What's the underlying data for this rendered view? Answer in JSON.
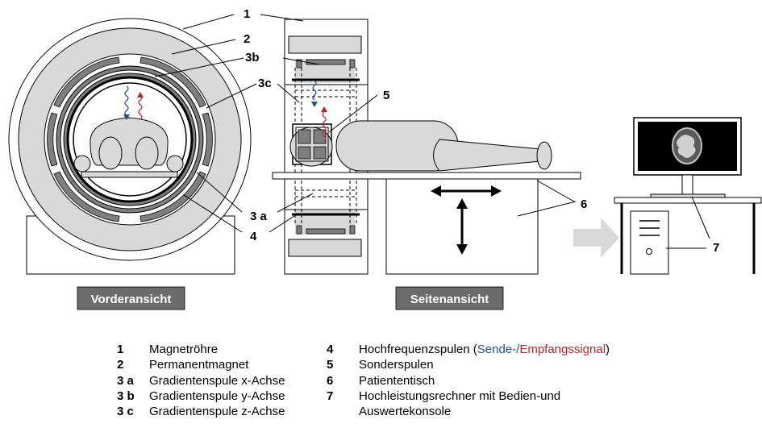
{
  "views": {
    "front": "Vorderansicht",
    "side": "Seitenansicht"
  },
  "callouts": [
    "1",
    "2",
    "3b",
    "3c",
    "5",
    "3 a",
    "4",
    "6",
    "7"
  ],
  "legend_left": [
    {
      "num": "1",
      "text": "Magnetröhre"
    },
    {
      "num": "2",
      "text": "Permanentmagnet"
    },
    {
      "num": "3 a",
      "text": "Gradientenspule x-Achse"
    },
    {
      "num": "3 b",
      "text": "Gradientenspule y-Achse"
    },
    {
      "num": "3 c",
      "text": "Gradientenspule z-Achse"
    }
  ],
  "legend_right": [
    {
      "num": "4",
      "text_a": "Hochfrequenzspulen (",
      "send": "Sende-",
      "slash": "/",
      "receive": "Empfangssignal",
      "close": ")"
    },
    {
      "num": "5",
      "text": "Sonderspulen"
    },
    {
      "num": "6",
      "text": "Patiententisch"
    },
    {
      "num": "7",
      "text": "Hochleistungsrechner mit Bedien-und"
    },
    {
      "num": "",
      "text": "Auswertekonsole"
    }
  ],
  "colors": {
    "send_signal": "#1f4e8c",
    "receive_signal": "#b02a2a",
    "label_box": "#6b6b6b",
    "magnet_fill": "#d9d9d9",
    "coil_fill": "#7f7f7f",
    "arrow_fill": "#d9d9d9"
  }
}
